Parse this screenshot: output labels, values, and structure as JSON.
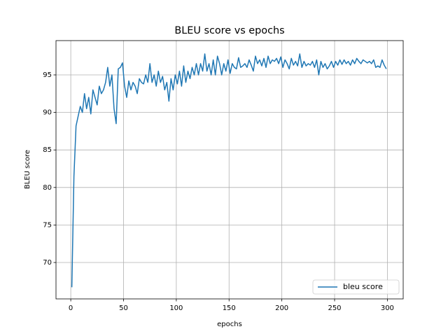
{
  "chart_data": {
    "type": "line",
    "title": "BLEU score vs epochs",
    "xlabel": "epochs",
    "ylabel": "BLEU score",
    "x": [
      1,
      3,
      5,
      7,
      9,
      11,
      13,
      15,
      17,
      19,
      21,
      23,
      25,
      27,
      29,
      31,
      33,
      35,
      37,
      39,
      41,
      43,
      45,
      47,
      49,
      51,
      53,
      55,
      57,
      59,
      61,
      63,
      65,
      67,
      69,
      71,
      73,
      75,
      77,
      79,
      81,
      83,
      85,
      87,
      89,
      91,
      93,
      95,
      97,
      99,
      101,
      103,
      105,
      107,
      109,
      111,
      113,
      115,
      117,
      119,
      121,
      123,
      125,
      127,
      129,
      131,
      133,
      135,
      137,
      139,
      141,
      143,
      145,
      147,
      149,
      151,
      153,
      155,
      157,
      159,
      161,
      163,
      165,
      167,
      169,
      171,
      173,
      175,
      177,
      179,
      181,
      183,
      185,
      187,
      189,
      191,
      193,
      195,
      197,
      199,
      201,
      203,
      205,
      207,
      209,
      211,
      213,
      215,
      217,
      219,
      221,
      223,
      225,
      227,
      229,
      231,
      233,
      235,
      237,
      239,
      241,
      243,
      245,
      247,
      249,
      251,
      253,
      255,
      257,
      259,
      261,
      263,
      265,
      267,
      269,
      271,
      273,
      275,
      277,
      279,
      281,
      283,
      285,
      287,
      289,
      291,
      293,
      295,
      297,
      299
    ],
    "series": [
      {
        "name": "bleu score",
        "color": "#1f77b4",
        "values": [
          66.7,
          81.5,
          88.2,
          89.5,
          90.8,
          90.0,
          92.5,
          90.5,
          92.0,
          89.8,
          93.0,
          92.0,
          91.0,
          93.5,
          92.5,
          93.0,
          94.0,
          96.0,
          93.5,
          95.0,
          90.5,
          88.5,
          95.8,
          96.0,
          96.6,
          93.5,
          92.0,
          94.2,
          93.0,
          94.0,
          93.5,
          92.5,
          94.5,
          94.0,
          93.8,
          95.0,
          94.0,
          96.5,
          94.0,
          95.0,
          93.5,
          95.5,
          94.0,
          94.8,
          93.0,
          94.0,
          91.5,
          94.5,
          93.0,
          95.0,
          93.8,
          95.5,
          93.5,
          96.2,
          94.0,
          95.5,
          94.5,
          96.0,
          95.0,
          96.5,
          95.0,
          96.5,
          95.5,
          97.8,
          95.5,
          96.5,
          95.0,
          97.0,
          95.0,
          97.5,
          96.5,
          95.0,
          96.5,
          95.5,
          97.0,
          95.2,
          96.5,
          96.0,
          95.8,
          97.3,
          96.0,
          96.2,
          96.5,
          96.0,
          97.0,
          96.3,
          95.5,
          97.5,
          96.5,
          97.0,
          96.2,
          97.2,
          96.0,
          97.5,
          96.5,
          97.0,
          96.8,
          97.2,
          96.5,
          97.4,
          96.0,
          97.0,
          96.5,
          95.8,
          97.2,
          96.3,
          96.8,
          96.2,
          97.8,
          96.0,
          96.8,
          96.2,
          96.5,
          96.3,
          96.8,
          96.0,
          97.0,
          95.0,
          96.8,
          96.0,
          96.5,
          95.8,
          96.2,
          96.8,
          96.0,
          96.8,
          96.3,
          97.0,
          96.4,
          97.0,
          96.5,
          96.8,
          96.3,
          97.0,
          96.5,
          97.2,
          96.8,
          96.5,
          97.0,
          96.8,
          96.6,
          96.8,
          96.5,
          97.0,
          96.0,
          96.2,
          96.0,
          97.0,
          96.3,
          95.8
        ]
      }
    ],
    "xlim": [
      -14,
      315
    ],
    "ylim": [
      65.15,
      99.57
    ],
    "xticks": [
      0,
      50,
      100,
      150,
      200,
      250,
      300
    ],
    "yticks": [
      70,
      75,
      80,
      85,
      90,
      95
    ],
    "grid": true,
    "legend": "lower right"
  }
}
